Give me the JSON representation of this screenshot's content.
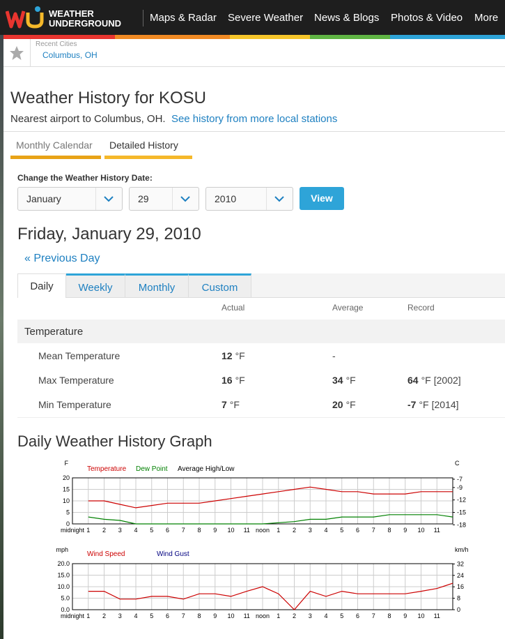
{
  "header": {
    "logo": [
      "WEATHER",
      "UNDERGROUND"
    ],
    "nav": [
      "Maps & Radar",
      "Severe Weather",
      "News & Blogs",
      "Photos & Video",
      "More"
    ]
  },
  "recent": {
    "label": "Recent Cities",
    "city": "Columbus, OH"
  },
  "title": "Weather History for KOSU",
  "subtitle": "Nearest airport to Columbus, OH.",
  "subtitle_link": "See history from more local stations",
  "view_tabs": [
    "Monthly Calendar",
    "Detailed History"
  ],
  "date_form": {
    "label": "Change the Weather History Date:",
    "month": "January",
    "day": 29,
    "year": 2010,
    "button": "View"
  },
  "date_heading": "Friday, January 29, 2010",
  "previous_day": "« Previous Day",
  "period_tabs": [
    "Daily",
    "Weekly",
    "Monthly",
    "Custom"
  ],
  "table": {
    "columns": [
      "Actual",
      "Average",
      "Record"
    ],
    "section": "Temperature",
    "rows": [
      {
        "label": "Mean Temperature",
        "actual": {
          "value": 12,
          "unit": "°F"
        },
        "average": {
          "text": "-"
        }
      },
      {
        "label": "Max Temperature",
        "actual": {
          "value": 16,
          "unit": "°F"
        },
        "average": {
          "value": 34,
          "unit": "°F"
        },
        "record": {
          "value": 64,
          "unit": "°F",
          "note": "[2002]"
        }
      },
      {
        "label": "Min Temperature",
        "actual": {
          "value": 7,
          "unit": "°F"
        },
        "average": {
          "value": 20,
          "unit": "°F"
        },
        "record": {
          "value": -7,
          "unit": "°F",
          "note": "[2014]"
        }
      }
    ]
  },
  "graph_title": "Daily Weather History Graph",
  "chart_data": [
    {
      "type": "line",
      "y_label": "F",
      "y2_label": "C",
      "x": [
        1,
        2,
        3,
        4,
        5,
        6,
        7,
        8,
        9,
        10,
        11,
        12,
        13,
        14,
        15,
        16,
        17,
        18,
        19,
        20,
        21,
        22,
        23,
        24
      ],
      "xlim": [
        0,
        24
      ],
      "xticks": [
        {
          "value": 0,
          "label": "midnight"
        },
        1,
        2,
        3,
        4,
        5,
        6,
        7,
        8,
        9,
        10,
        11,
        {
          "value": 12,
          "label": "noon"
        },
        {
          "value": 13,
          "label": "1"
        },
        {
          "value": 14,
          "label": "2"
        },
        {
          "value": 15,
          "label": "3"
        },
        {
          "value": 16,
          "label": "4"
        },
        {
          "value": 17,
          "label": "5"
        },
        {
          "value": 18,
          "label": "6"
        },
        {
          "value": 19,
          "label": "7"
        },
        {
          "value": 20,
          "label": "8"
        },
        {
          "value": 21,
          "label": "9"
        },
        {
          "value": 22,
          "label": "10"
        },
        {
          "value": 23,
          "label": "11"
        }
      ],
      "ylim": [
        0,
        20
      ],
      "yticks": [
        0,
        5,
        10,
        15,
        20
      ],
      "y2lim": [
        -17.78,
        -6.67
      ],
      "y2ticks": [
        -7,
        -9,
        -12,
        -15,
        -18
      ],
      "grid": true,
      "series": [
        {
          "name": "Temperature",
          "color": "#cc0000",
          "values": [
            10,
            10,
            8.5,
            7,
            8,
            9,
            9,
            9,
            10,
            11,
            12,
            13,
            14,
            15,
            16,
            15,
            14,
            14,
            13,
            13,
            13,
            14,
            14,
            14
          ]
        },
        {
          "name": "Dew Point",
          "color": "#008000",
          "values": [
            3,
            2,
            1.5,
            0,
            0,
            0,
            0,
            0,
            0,
            0,
            0,
            0,
            0.5,
            1,
            2,
            2,
            3,
            3,
            3,
            4,
            4,
            4,
            4,
            3
          ]
        }
      ],
      "legend_extra": [
        {
          "name": "Average High/Low",
          "color": "#000000"
        }
      ]
    },
    {
      "type": "line",
      "y_label": "mph",
      "y2_label": "km/h",
      "x": [
        1,
        2,
        3,
        4,
        5,
        6,
        7,
        8,
        9,
        10,
        11,
        12,
        13,
        14,
        15,
        16,
        17,
        18,
        19,
        20,
        21,
        22,
        23,
        24
      ],
      "xlim": [
        0,
        24
      ],
      "xticks": [
        {
          "value": 0,
          "label": "midnight"
        },
        1,
        2,
        3,
        4,
        5,
        6,
        7,
        8,
        9,
        10,
        11,
        {
          "value": 12,
          "label": "noon"
        },
        {
          "value": 13,
          "label": "1"
        },
        {
          "value": 14,
          "label": "2"
        },
        {
          "value": 15,
          "label": "3"
        },
        {
          "value": 16,
          "label": "4"
        },
        {
          "value": 17,
          "label": "5"
        },
        {
          "value": 18,
          "label": "6"
        },
        {
          "value": 19,
          "label": "7"
        },
        {
          "value": 20,
          "label": "8"
        },
        {
          "value": 21,
          "label": "9"
        },
        {
          "value": 22,
          "label": "10"
        },
        {
          "value": 23,
          "label": "11"
        }
      ],
      "ylim": [
        0,
        20
      ],
      "yticks": [
        {
          "value": 0,
          "label": "0.0"
        },
        {
          "value": 5,
          "label": "5.0"
        },
        {
          "value": 10,
          "label": "10.0"
        },
        {
          "value": 15,
          "label": "15.0"
        },
        {
          "value": 20,
          "label": "20.0"
        }
      ],
      "y2lim": [
        0,
        32.19
      ],
      "y2ticks": [
        0,
        8,
        16,
        24,
        32
      ],
      "grid": true,
      "series": [
        {
          "name": "Wind Speed",
          "color": "#cc0000",
          "values": [
            8,
            8,
            4.6,
            4.6,
            5.8,
            5.8,
            4.6,
            6.9,
            6.9,
            5.8,
            8,
            10,
            6.9,
            0,
            8,
            5.8,
            8,
            6.9,
            6.9,
            6.9,
            6.9,
            8,
            9.2,
            11.5
          ]
        }
      ],
      "legend_extra": [
        {
          "name": "Wind Gust",
          "color": "#000080"
        }
      ]
    }
  ]
}
